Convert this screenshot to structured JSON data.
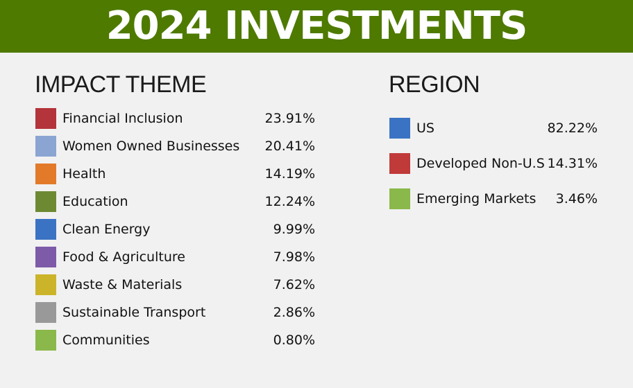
{
  "header": {
    "title": "2024 INVESTMENTS"
  },
  "chart_data": [
    {
      "type": "table",
      "title": "IMPACT THEME",
      "categories": [
        "Financial Inclusion",
        "Women Owned Businesses",
        "Health",
        "Education",
        "Clean Energy",
        "Food & Agriculture",
        "Waste & Materials",
        "Sustainable Transport",
        "Communities"
      ],
      "values": [
        23.91,
        20.41,
        14.19,
        12.24,
        9.99,
        7.98,
        7.62,
        2.86,
        0.8
      ],
      "value_labels": [
        "23.91%",
        "20.41%",
        "14.19%",
        "12.24%",
        "9.99%",
        "7.98%",
        "7.62%",
        "2.86%",
        "0.80%"
      ],
      "colors": [
        "#b3343a",
        "#8ba5d2",
        "#e27a2a",
        "#6d8a32",
        "#3b73c4",
        "#7d5ba8",
        "#cbb42a",
        "#999999",
        "#8ab84a"
      ]
    },
    {
      "type": "table",
      "title": "REGION",
      "categories": [
        "US",
        "Developed Non-U.S",
        "Emerging Markets"
      ],
      "values": [
        82.22,
        14.31,
        3.46
      ],
      "value_labels": [
        "82.22%",
        "14.31%",
        "3.46%"
      ],
      "colors": [
        "#3b73c4",
        "#c03a3a",
        "#8ab84a"
      ]
    }
  ]
}
